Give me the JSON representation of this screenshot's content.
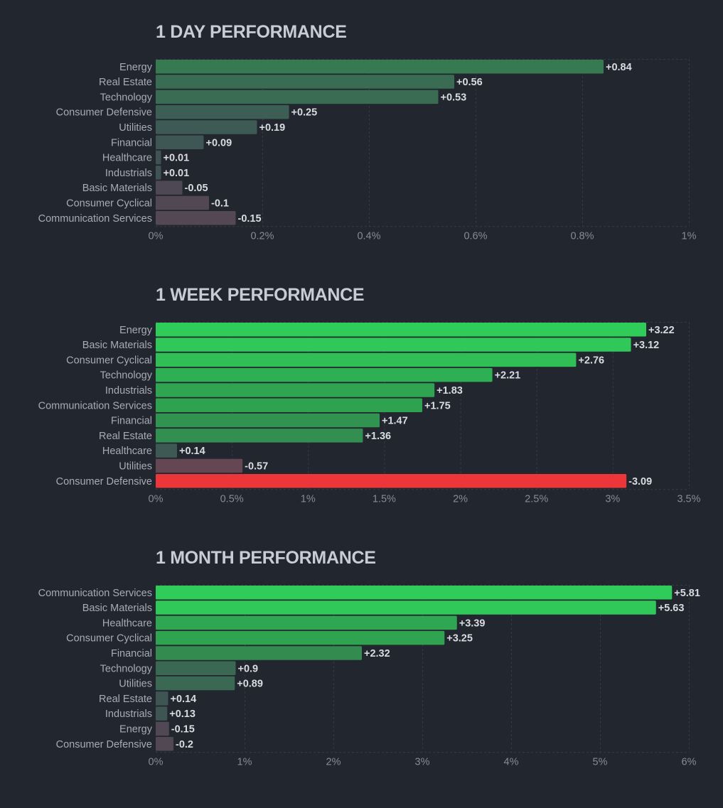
{
  "chart_data": [
    {
      "type": "bar",
      "orientation": "horizontal",
      "title": "1 DAY PERFORMANCE",
      "xlabel": "",
      "ylabel": "",
      "xlim": [
        0,
        1
      ],
      "x_unit": "%",
      "grid": true,
      "bar_length": "absolute value",
      "x_ticks": [
        "0%",
        "0.2%",
        "0.4%",
        "0.6%",
        "0.8%",
        "1%"
      ],
      "x_tick_values": [
        0,
        0.2,
        0.4,
        0.6,
        0.8,
        1
      ],
      "categories": [
        "Energy",
        "Real Estate",
        "Technology",
        "Consumer Defensive",
        "Utilities",
        "Financial",
        "Healthcare",
        "Industrials",
        "Basic Materials",
        "Consumer Cyclical",
        "Communication Services"
      ],
      "values": [
        0.84,
        0.56,
        0.53,
        0.25,
        0.19,
        0.09,
        0.01,
        0.01,
        -0.05,
        -0.1,
        -0.15
      ],
      "value_labels": [
        "+0.84",
        "+0.56",
        "+0.53",
        "+0.25",
        "+0.19",
        "+0.09",
        "+0.01",
        "+0.01",
        "-0.05",
        "-0.1",
        "-0.15"
      ]
    },
    {
      "type": "bar",
      "orientation": "horizontal",
      "title": "1 WEEK PERFORMANCE",
      "xlabel": "",
      "ylabel": "",
      "xlim": [
        0,
        3.5
      ],
      "x_unit": "%",
      "grid": true,
      "bar_length": "absolute value",
      "x_ticks": [
        "0%",
        "0.5%",
        "1%",
        "1.5%",
        "2%",
        "2.5%",
        "3%",
        "3.5%"
      ],
      "x_tick_values": [
        0,
        0.5,
        1,
        1.5,
        2,
        2.5,
        3,
        3.5
      ],
      "categories": [
        "Energy",
        "Basic Materials",
        "Consumer Cyclical",
        "Technology",
        "Industrials",
        "Communication Services",
        "Financial",
        "Real Estate",
        "Healthcare",
        "Utilities",
        "Consumer Defensive"
      ],
      "values": [
        3.22,
        3.12,
        2.76,
        2.21,
        1.83,
        1.75,
        1.47,
        1.36,
        0.14,
        -0.57,
        -3.09
      ],
      "value_labels": [
        "+3.22",
        "+3.12",
        "+2.76",
        "+2.21",
        "+1.83",
        "+1.75",
        "+1.47",
        "+1.36",
        "+0.14",
        "-0.57",
        "-3.09"
      ]
    },
    {
      "type": "bar",
      "orientation": "horizontal",
      "title": "1 MONTH PERFORMANCE",
      "xlabel": "",
      "ylabel": "",
      "xlim": [
        0,
        6
      ],
      "x_unit": "%",
      "grid": true,
      "bar_length": "absolute value",
      "x_ticks": [
        "0%",
        "1%",
        "2%",
        "3%",
        "4%",
        "5%",
        "6%"
      ],
      "x_tick_values": [
        0,
        1,
        2,
        3,
        4,
        5,
        6
      ],
      "categories": [
        "Communication Services",
        "Basic Materials",
        "Healthcare",
        "Consumer Cyclical",
        "Financial",
        "Technology",
        "Utilities",
        "Real Estate",
        "Industrials",
        "Energy",
        "Consumer Defensive"
      ],
      "values": [
        5.81,
        5.63,
        3.39,
        3.25,
        2.32,
        0.9,
        0.89,
        0.14,
        0.13,
        -0.15,
        -0.2
      ],
      "value_labels": [
        "+5.81",
        "+5.63",
        "+3.39",
        "+3.25",
        "+2.32",
        "+0.9",
        "+0.89",
        "+0.14",
        "+0.13",
        "-0.15",
        "-0.2"
      ]
    }
  ],
  "colors": {
    "background": "#22262f",
    "title": "#c9ccd4",
    "grid": "#363a44",
    "neutral": "#414955",
    "positive_strong": "#30cc5a",
    "negative_strong": "#f63538"
  }
}
